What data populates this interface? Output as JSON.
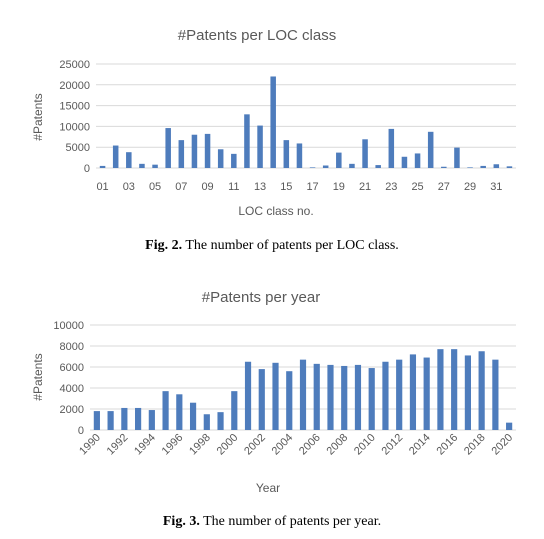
{
  "chart_data": [
    {
      "type": "bar",
      "title": "#Patents per LOC class",
      "xlabel": "LOC class no.",
      "ylabel": "#Patents",
      "ylim": [
        0,
        25000
      ],
      "yticks": [
        "0",
        "5000",
        "10000",
        "15000",
        "20000",
        "25000"
      ],
      "categories": [
        "01",
        "02",
        "03",
        "04",
        "05",
        "06",
        "07",
        "08",
        "09",
        "10",
        "11",
        "12",
        "13",
        "14",
        "15",
        "16",
        "17",
        "18",
        "19",
        "20",
        "21",
        "22",
        "23",
        "24",
        "25",
        "26",
        "27",
        "28",
        "29",
        "30",
        "31",
        "32"
      ],
      "xtick_labels": [
        "01",
        "03",
        "05",
        "07",
        "09",
        "11",
        "13",
        "15",
        "17",
        "19",
        "21",
        "23",
        "25",
        "27",
        "29",
        "31"
      ],
      "values": [
        500,
        5400,
        3800,
        1000,
        800,
        9600,
        6700,
        8000,
        8200,
        4500,
        3400,
        12900,
        10200,
        22000,
        6700,
        5900,
        150,
        600,
        3700,
        1000,
        6900,
        700,
        9400,
        2700,
        3500,
        8700,
        300,
        4900,
        150,
        500,
        900,
        400
      ],
      "color": "#4e7cbc",
      "grid": true
    },
    {
      "type": "bar",
      "title": "#Patents per year",
      "xlabel": "Year",
      "ylabel": "#Patents",
      "ylim": [
        0,
        10000
      ],
      "yticks": [
        "0",
        "2000",
        "4000",
        "6000",
        "8000",
        "10000"
      ],
      "categories": [
        "1990",
        "1991",
        "1992",
        "1993",
        "1994",
        "1995",
        "1996",
        "1997",
        "1998",
        "1999",
        "2000",
        "2001",
        "2002",
        "2003",
        "2004",
        "2005",
        "2006",
        "2007",
        "2008",
        "2009",
        "2010",
        "2011",
        "2012",
        "2013",
        "2014",
        "2015",
        "2016",
        "2017",
        "2018",
        "2019",
        "2020"
      ],
      "xtick_labels": [
        "1990",
        "1992",
        "1994",
        "1996",
        "1998",
        "2000",
        "2002",
        "2004",
        "2006",
        "2008",
        "2010",
        "2012",
        "2014",
        "2016",
        "2018",
        "2020"
      ],
      "values": [
        1800,
        1800,
        2100,
        2100,
        1900,
        3700,
        3400,
        2600,
        1500,
        1700,
        3700,
        6500,
        5800,
        6400,
        5600,
        6700,
        6300,
        6200,
        6100,
        6200,
        5900,
        6500,
        6700,
        7200,
        6900,
        7700,
        7700,
        7100,
        7500,
        6700,
        700
      ],
      "color": "#4e7cbc",
      "grid": true
    }
  ],
  "captions": {
    "fig2_label": "Fig. 2.",
    "fig2_text": " The number of patents per LOC class.",
    "fig3_label": "Fig. 3.",
    "fig3_text": " The number of patents per year."
  }
}
